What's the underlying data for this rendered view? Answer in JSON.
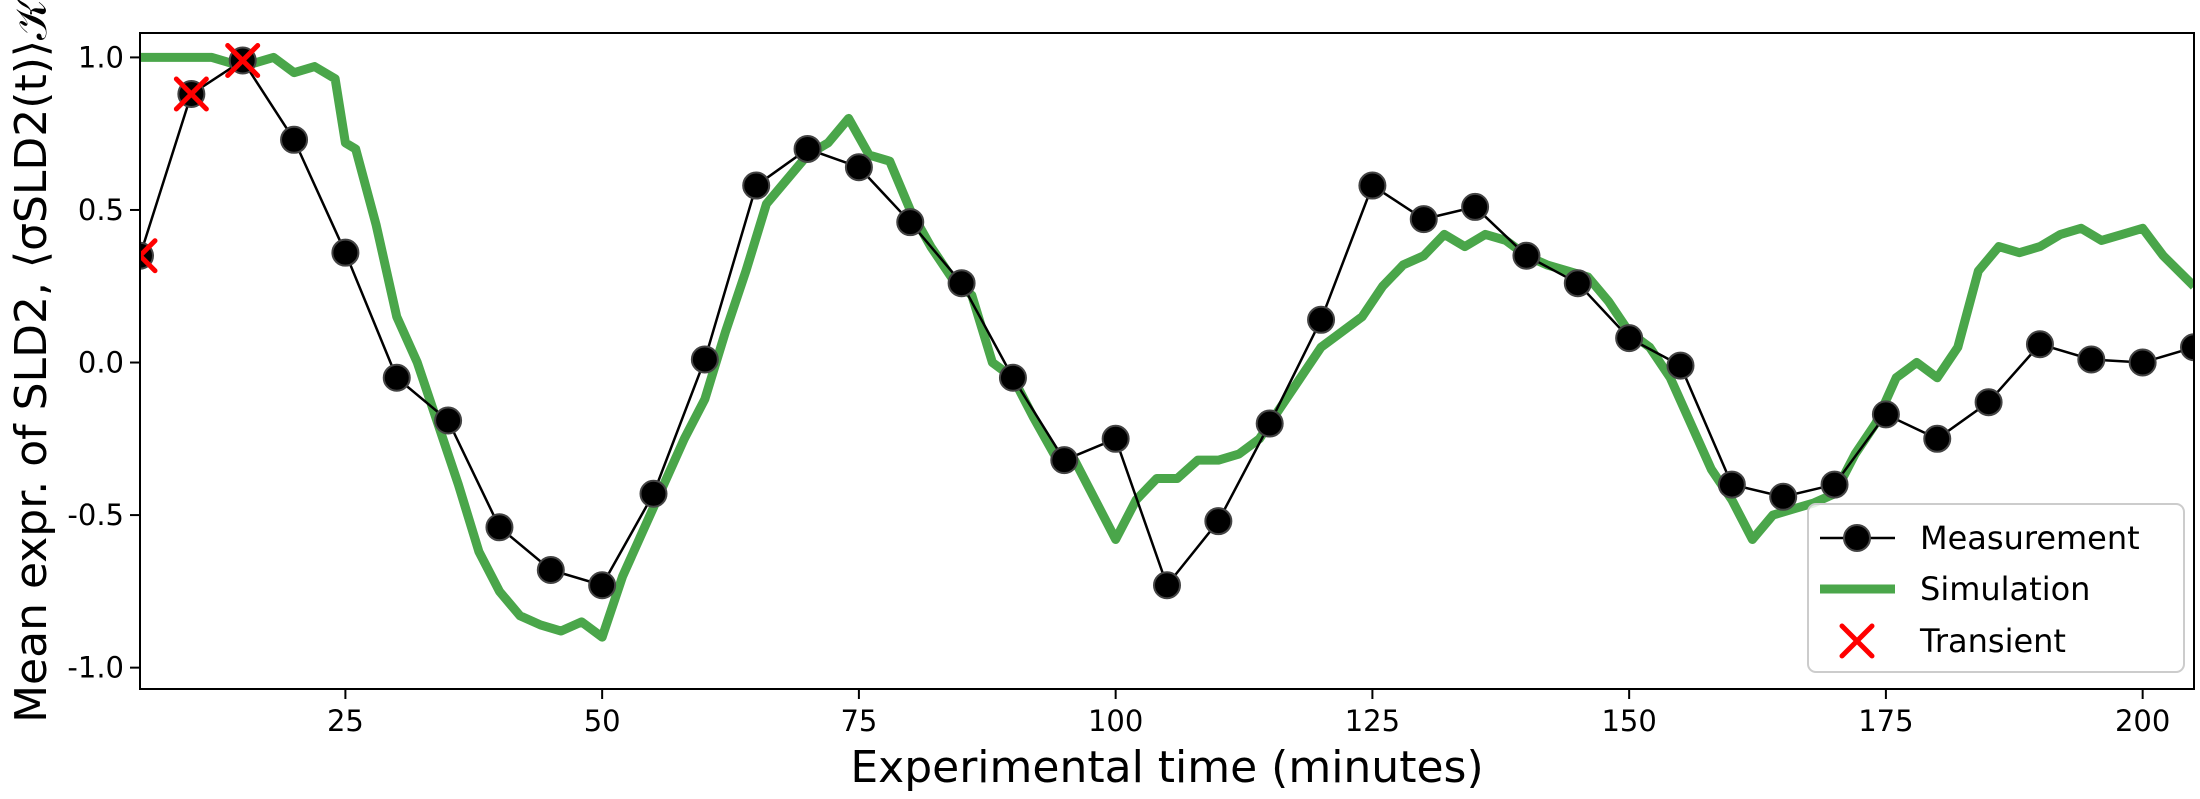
{
  "chart_data": {
    "type": "line",
    "xlabel": "Experimental time (minutes)",
    "ylabel": "Mean expr. of SLD2, ⟨σSLD2(t)⟩𝒦",
    "xlim": [
      5,
      205
    ],
    "ylim": [
      -1.07,
      1.08
    ],
    "xticks": [
      25,
      50,
      75,
      100,
      125,
      150,
      175,
      200
    ],
    "yticks": [
      -1.0,
      -0.5,
      0.0,
      0.5,
      1.0
    ],
    "ytick_labels": [
      "-1.0",
      "-0.5",
      "0.0",
      "0.5",
      "1.0"
    ],
    "legend_position": "lower-right",
    "colors": {
      "measurement": "#000000",
      "simulation": "#4aa64a",
      "transient": "#ff0000"
    },
    "series": [
      {
        "name": "Measurement",
        "x": [
          5,
          10,
          15,
          20,
          25,
          30,
          35,
          40,
          45,
          50,
          55,
          60,
          65,
          70,
          75,
          80,
          85,
          90,
          95,
          100,
          105,
          110,
          115,
          120,
          125,
          130,
          135,
          140,
          145,
          150,
          155,
          160,
          165,
          170,
          175,
          180,
          185,
          190,
          195,
          200,
          205
        ],
        "y": [
          0.35,
          0.88,
          0.99,
          0.73,
          0.36,
          -0.05,
          -0.19,
          -0.54,
          -0.68,
          -0.73,
          -0.43,
          0.01,
          0.58,
          0.7,
          0.64,
          0.46,
          0.26,
          -0.05,
          -0.32,
          -0.25,
          -0.73,
          -0.52,
          -0.2,
          0.14,
          0.58,
          0.47,
          0.51,
          0.35,
          0.26,
          0.08,
          -0.01,
          -0.4,
          -0.44,
          -0.4,
          -0.17,
          -0.25,
          -0.13,
          0.06,
          0.01,
          0.0,
          0.05
        ]
      },
      {
        "name": "Simulation",
        "x": [
          5,
          8,
          12,
          15,
          18,
          20,
          22,
          24,
          25,
          26,
          28,
          30,
          32,
          34,
          36,
          38,
          40,
          42,
          44,
          46,
          48,
          50,
          52,
          54,
          56,
          58,
          60,
          62,
          64,
          66,
          68,
          70,
          72,
          74,
          76,
          78,
          80,
          82,
          84,
          86,
          88,
          90,
          92,
          94,
          96,
          98,
          100,
          102,
          104,
          106,
          108,
          110,
          112,
          114,
          116,
          118,
          120,
          122,
          124,
          126,
          128,
          130,
          132,
          134,
          136,
          138,
          140,
          142,
          144,
          146,
          148,
          150,
          152,
          154,
          156,
          158,
          160,
          162,
          164,
          166,
          168,
          170,
          172,
          174,
          176,
          178,
          180,
          182,
          184,
          186,
          188,
          190,
          192,
          194,
          196,
          198,
          200,
          202,
          205
        ],
        "y": [
          1.0,
          1.0,
          1.0,
          0.97,
          1.0,
          0.95,
          0.97,
          0.93,
          0.72,
          0.7,
          0.45,
          0.15,
          0.0,
          -0.2,
          -0.4,
          -0.62,
          -0.75,
          -0.83,
          -0.86,
          -0.88,
          -0.85,
          -0.9,
          -0.7,
          -0.55,
          -0.4,
          -0.25,
          -0.12,
          0.1,
          0.3,
          0.52,
          0.6,
          0.68,
          0.72,
          0.8,
          0.68,
          0.66,
          0.5,
          0.38,
          0.28,
          0.22,
          0.0,
          -0.05,
          -0.18,
          -0.3,
          -0.32,
          -0.45,
          -0.58,
          -0.45,
          -0.38,
          -0.38,
          -0.32,
          -0.32,
          -0.3,
          -0.25,
          -0.15,
          -0.05,
          0.05,
          0.1,
          0.15,
          0.25,
          0.32,
          0.35,
          0.42,
          0.38,
          0.42,
          0.4,
          0.35,
          0.32,
          0.3,
          0.28,
          0.2,
          0.1,
          0.05,
          -0.05,
          -0.2,
          -0.35,
          -0.45,
          -0.58,
          -0.5,
          -0.48,
          -0.46,
          -0.43,
          -0.3,
          -0.2,
          -0.05,
          0.0,
          -0.05,
          0.05,
          0.3,
          0.38,
          0.36,
          0.38,
          0.42,
          0.44,
          0.4,
          0.42,
          0.44,
          0.35,
          0.25
        ]
      },
      {
        "name": "Transient",
        "x": [
          5,
          10,
          15
        ],
        "y": [
          0.35,
          0.88,
          0.99
        ]
      }
    ]
  }
}
